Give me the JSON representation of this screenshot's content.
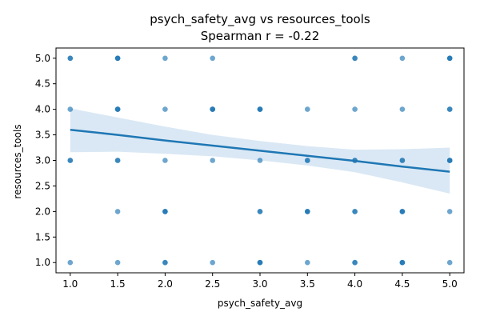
{
  "chart_data": {
    "type": "scatter",
    "title": "psych_safety_avg vs resources_tools",
    "subtitle": "Spearman r = -0.22",
    "xlabel": "psych_safety_avg",
    "ylabel": "resources_tools",
    "xlim": [
      0.85,
      5.15
    ],
    "ylim": [
      0.8,
      5.2
    ],
    "xticks": [
      "1.0",
      "1.5",
      "2.0",
      "2.5",
      "3.0",
      "3.5",
      "4.0",
      "4.5",
      "5.0"
    ],
    "yticks": [
      "1.0",
      "1.5",
      "2.0",
      "2.5",
      "3.0",
      "3.5",
      "4.0",
      "4.5",
      "5.0"
    ],
    "grid": false,
    "colors": {
      "points": "#1f77b4",
      "line": "#1f77b4",
      "band": "#c6dbef"
    },
    "points": [
      {
        "x": 1.0,
        "y": 5.0
      },
      {
        "x": 1.0,
        "y": 5.0
      },
      {
        "x": 1.0,
        "y": 4.0
      },
      {
        "x": 1.0,
        "y": 3.0
      },
      {
        "x": 1.0,
        "y": 3.0
      },
      {
        "x": 1.0,
        "y": 1.0
      },
      {
        "x": 1.5,
        "y": 5.0
      },
      {
        "x": 1.5,
        "y": 5.0
      },
      {
        "x": 1.5,
        "y": 5.0
      },
      {
        "x": 1.5,
        "y": 4.0
      },
      {
        "x": 1.5,
        "y": 4.0
      },
      {
        "x": 1.5,
        "y": 4.0
      },
      {
        "x": 1.5,
        "y": 3.0
      },
      {
        "x": 1.5,
        "y": 3.0
      },
      {
        "x": 1.5,
        "y": 2.0
      },
      {
        "x": 1.5,
        "y": 1.0
      },
      {
        "x": 2.0,
        "y": 5.0
      },
      {
        "x": 2.0,
        "y": 4.0
      },
      {
        "x": 2.0,
        "y": 3.0
      },
      {
        "x": 2.0,
        "y": 2.0
      },
      {
        "x": 2.0,
        "y": 2.0
      },
      {
        "x": 2.0,
        "y": 2.0
      },
      {
        "x": 2.0,
        "y": 1.0
      },
      {
        "x": 2.0,
        "y": 1.0
      },
      {
        "x": 2.5,
        "y": 5.0
      },
      {
        "x": 2.5,
        "y": 4.0
      },
      {
        "x": 2.5,
        "y": 4.0
      },
      {
        "x": 2.5,
        "y": 4.0
      },
      {
        "x": 2.5,
        "y": 3.0
      },
      {
        "x": 2.5,
        "y": 1.0
      },
      {
        "x": 3.0,
        "y": 4.0
      },
      {
        "x": 3.0,
        "y": 4.0
      },
      {
        "x": 3.0,
        "y": 4.0
      },
      {
        "x": 3.0,
        "y": 3.0
      },
      {
        "x": 3.0,
        "y": 2.0
      },
      {
        "x": 3.0,
        "y": 2.0
      },
      {
        "x": 3.0,
        "y": 1.0
      },
      {
        "x": 3.0,
        "y": 1.0
      },
      {
        "x": 3.0,
        "y": 1.0
      },
      {
        "x": 3.5,
        "y": 4.0
      },
      {
        "x": 3.5,
        "y": 3.0
      },
      {
        "x": 3.5,
        "y": 3.0
      },
      {
        "x": 3.5,
        "y": 2.0
      },
      {
        "x": 3.5,
        "y": 2.0
      },
      {
        "x": 3.5,
        "y": 2.0
      },
      {
        "x": 3.5,
        "y": 1.0
      },
      {
        "x": 4.0,
        "y": 5.0
      },
      {
        "x": 4.0,
        "y": 5.0
      },
      {
        "x": 4.0,
        "y": 4.0
      },
      {
        "x": 4.0,
        "y": 3.0
      },
      {
        "x": 4.0,
        "y": 3.0
      },
      {
        "x": 4.0,
        "y": 2.0
      },
      {
        "x": 4.0,
        "y": 2.0
      },
      {
        "x": 4.0,
        "y": 1.0
      },
      {
        "x": 4.0,
        "y": 1.0
      },
      {
        "x": 4.5,
        "y": 5.0
      },
      {
        "x": 4.5,
        "y": 4.0
      },
      {
        "x": 4.5,
        "y": 3.0
      },
      {
        "x": 4.5,
        "y": 3.0
      },
      {
        "x": 4.5,
        "y": 2.0
      },
      {
        "x": 4.5,
        "y": 2.0
      },
      {
        "x": 4.5,
        "y": 2.0
      },
      {
        "x": 4.5,
        "y": 1.0
      },
      {
        "x": 4.5,
        "y": 1.0
      },
      {
        "x": 4.5,
        "y": 1.0
      },
      {
        "x": 5.0,
        "y": 5.0
      },
      {
        "x": 5.0,
        "y": 5.0
      },
      {
        "x": 5.0,
        "y": 5.0
      },
      {
        "x": 5.0,
        "y": 4.0
      },
      {
        "x": 5.0,
        "y": 4.0
      },
      {
        "x": 5.0,
        "y": 3.0
      },
      {
        "x": 5.0,
        "y": 3.0
      },
      {
        "x": 5.0,
        "y": 3.0
      },
      {
        "x": 5.0,
        "y": 2.0
      },
      {
        "x": 5.0,
        "y": 1.0
      }
    ],
    "regression": {
      "x": [
        1.0,
        1.5,
        2.0,
        2.5,
        3.0,
        3.5,
        4.0,
        4.5,
        5.0
      ],
      "y": [
        3.6,
        3.5,
        3.39,
        3.29,
        3.19,
        3.09,
        2.99,
        2.88,
        2.78
      ],
      "ci_low": [
        3.16,
        3.17,
        3.13,
        3.08,
        3.0,
        2.9,
        2.77,
        2.57,
        2.35
      ],
      "ci_high": [
        4.02,
        3.84,
        3.66,
        3.5,
        3.38,
        3.28,
        3.21,
        3.22,
        3.25
      ]
    }
  }
}
